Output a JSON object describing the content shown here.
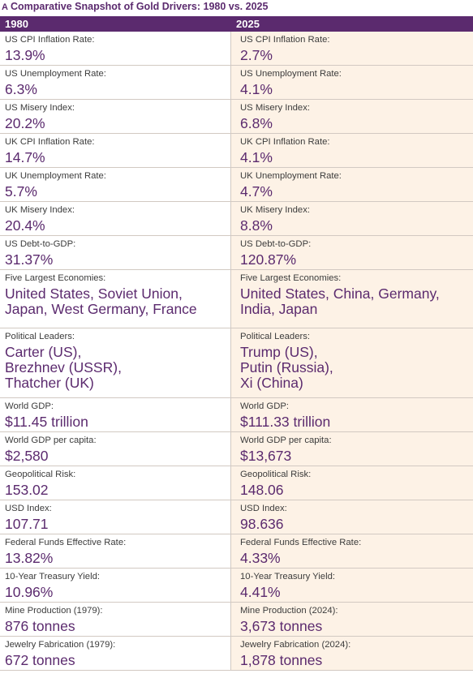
{
  "title": {
    "letter": "A",
    "text": "Comparative Snapshot of Gold Drivers: 1980 vs. 2025"
  },
  "header": {
    "left": "1980",
    "right": "2025"
  },
  "rows": [
    {
      "left_label": "US CPI Inflation Rate:",
      "left_value": "13.9%",
      "right_label": "US CPI Inflation Rate:",
      "right_value": "2.7%"
    },
    {
      "left_label": "US Unemployment Rate:",
      "left_value": "6.3%",
      "right_label": "US Unemployment Rate:",
      "right_value": "4.1%"
    },
    {
      "left_label": "US Misery Index:",
      "left_value": "20.2%",
      "right_label": "US Misery Index:",
      "right_value": "6.8%"
    },
    {
      "left_label": "UK CPI Inflation Rate:",
      "left_value": "14.7%",
      "right_label": "UK CPI Inflation Rate:",
      "right_value": "4.1%"
    },
    {
      "left_label": "UK Unemployment Rate:",
      "left_value": "5.7%",
      "right_label": "UK Unemployment Rate:",
      "right_value": "4.7%"
    },
    {
      "left_label": "UK Misery Index:",
      "left_value": "20.4%",
      "right_label": "UK Misery Index:",
      "right_value": "8.8%"
    },
    {
      "left_label": "US Debt-to-GDP:",
      "left_value": "31.37%",
      "right_label": "US Debt-to-GDP:",
      "right_value": "120.87%"
    },
    {
      "left_label": "Five Largest Economies:",
      "left_value": "United States, Soviet Union,\nJapan, West Germany, France",
      "right_label": "Five Largest Economies:",
      "right_value": "United States, China, Germany,\nIndia, Japan"
    },
    {
      "left_label": "Political Leaders:",
      "left_value": "Carter (US),\nBrezhnev (USSR),\nThatcher (UK)",
      "right_label": "Political Leaders:",
      "right_value": "Trump (US),\nPutin (Russia),\nXi (China)"
    },
    {
      "left_label": "World GDP:",
      "left_value": "$11.45 trillion",
      "right_label": "World GDP:",
      "right_value": "$111.33 trillion"
    },
    {
      "left_label": "World GDP per capita:",
      "left_value": "$2,580",
      "right_label": "World GDP per capita:",
      "right_value": "$13,673"
    },
    {
      "left_label": "Geopolitical Risk:",
      "left_value": "153.02",
      "right_label": "Geopolitical Risk:",
      "right_value": "148.06"
    },
    {
      "left_label": "USD Index:",
      "left_value": "107.71",
      "right_label": "USD Index:",
      "right_value": "98.636"
    },
    {
      "left_label": "Federal Funds Effective Rate:",
      "left_value": "13.82%",
      "right_label": "Federal Funds Effective Rate:",
      "right_value": "4.33%"
    },
    {
      "left_label": "10-Year Treasury Yield:",
      "left_value": "10.96%",
      "right_label": "10-Year Treasury Yield:",
      "right_value": "4.41%"
    },
    {
      "left_label": "Mine Production (1979):",
      "left_value": "876 tonnes",
      "right_label": "Mine Production (2024):",
      "right_value": "3,673 tonnes"
    },
    {
      "left_label": "Jewelry Fabrication (1979):",
      "left_value": "672 tonnes",
      "right_label": "Jewelry Fabrication (2024):",
      "right_value": "1,878 tonnes"
    }
  ]
}
